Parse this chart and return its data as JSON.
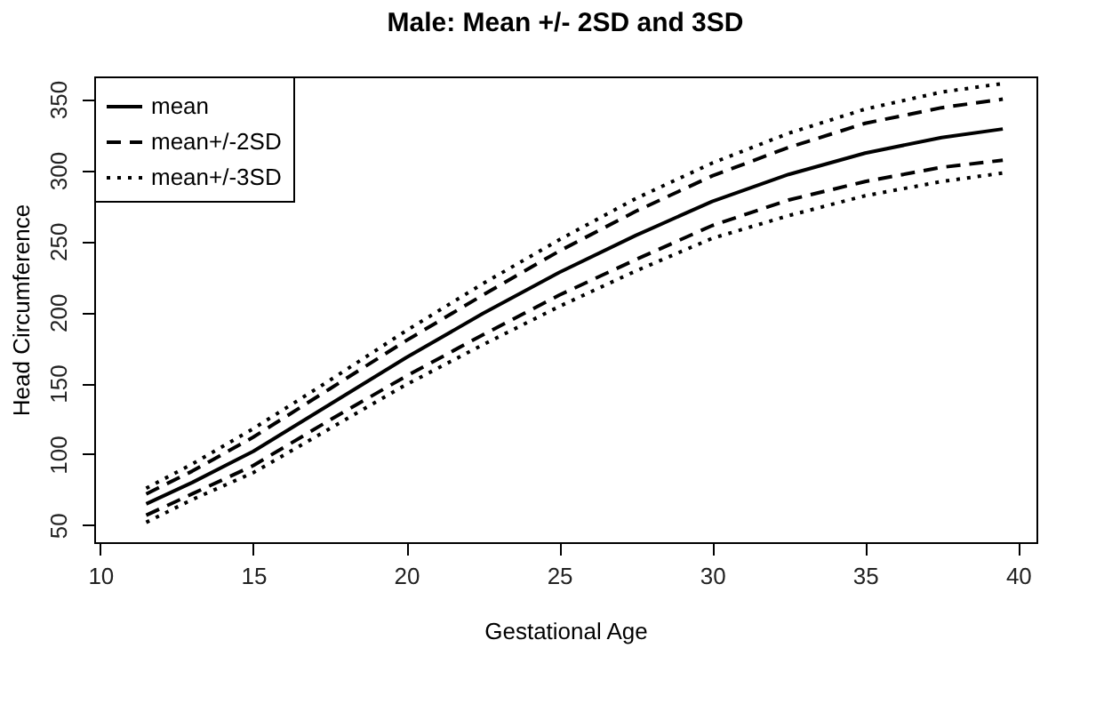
{
  "chart_data": {
    "type": "line",
    "title": "Male: Mean +/- 2SD and 3SD",
    "xlabel": "Gestational Age",
    "ylabel": "Head Circumference",
    "x": [
      11.5,
      13,
      15,
      17.5,
      20,
      22.5,
      25,
      27.5,
      30,
      32.5,
      35,
      37.5,
      39.5
    ],
    "series": [
      {
        "name": "mean",
        "color": "#000000",
        "line_style": "solid",
        "values": [
          65,
          80,
          102,
          135,
          168,
          199,
          228,
          254,
          278,
          297,
          312,
          323,
          329
        ]
      },
      {
        "name": "mean+/-2SD",
        "color": "#000000",
        "line_style": "dashed",
        "values": [
          72,
          88,
          112,
          146,
          180,
          212,
          243,
          271,
          296,
          316,
          333,
          344,
          350
        ]
      },
      {
        "color": "#000000",
        "line_style": "dashed",
        "values": [
          57,
          72,
          92,
          124,
          155,
          184,
          212,
          237,
          261,
          279,
          292,
          302,
          307
        ]
      },
      {
        "name": "mean+/-3SD",
        "color": "#000000",
        "line_style": "dotted",
        "values": [
          76,
          93,
          118,
          152,
          187,
          220,
          251,
          280,
          305,
          326,
          343,
          355,
          361
        ]
      },
      {
        "color": "#000000",
        "line_style": "dotted",
        "values": [
          52,
          68,
          87,
          118,
          149,
          177,
          204,
          229,
          252,
          268,
          282,
          292,
          298
        ]
      }
    ],
    "xlim": [
      9.8,
      40.6
    ],
    "ylim": [
      38,
      366
    ],
    "xticks": [
      10,
      15,
      20,
      25,
      30,
      35,
      40
    ],
    "yticks": [
      50,
      100,
      150,
      200,
      250,
      300,
      350
    ],
    "grid": false,
    "legend": "top left",
    "marker": "none"
  }
}
